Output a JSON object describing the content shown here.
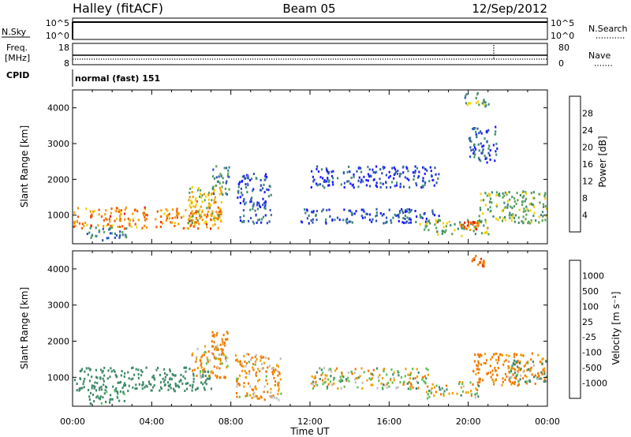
{
  "header": {
    "station": "Halley (fitACF)",
    "beam": "Beam 05",
    "date": "12/Sep/2012"
  },
  "nsky_panel": {
    "left_label": "N.Sky",
    "right_label": "N.Search",
    "ticks_left": [
      "10^5",
      "10^0"
    ],
    "ticks_right": [
      "10^5",
      "10^0"
    ]
  },
  "freq_panel": {
    "label_freq": "Freq.",
    "label_unit": "[MHz]",
    "right_label": "Nave",
    "ticks_left": [
      "18",
      "8"
    ],
    "ticks_right": [
      "80",
      "0"
    ]
  },
  "cpid_panel": {
    "label": "CPID",
    "text": "normal (fast) 151"
  },
  "x_axis": {
    "label": "Time UT",
    "ticks": [
      "00:00",
      "04:00",
      "08:00",
      "12:00",
      "16:00",
      "20:00",
      "00:00"
    ],
    "range_hours": [
      0,
      24
    ]
  },
  "chart_data": [
    {
      "type": "heatmap",
      "name": "power_panel",
      "ylabel": "Slant Range [km]",
      "yticks": [
        "1000",
        "2000",
        "3000",
        "4000"
      ],
      "ylim": [
        200,
        4500
      ],
      "colorbar": {
        "label": "Power [dB]",
        "ticks": [
          "4",
          "8",
          "12",
          "16",
          "20",
          "24",
          "28"
        ],
        "range": [
          0,
          30
        ],
        "colors": [
          "#1a1aff",
          "#2e55b8",
          "#3f8a7a",
          "#5aa15a",
          "#f0d000",
          "#f59a00",
          "#f05a00",
          "#e61e00"
        ]
      },
      "regions": [
        {
          "t": [
            0.0,
            7.5
          ],
          "r": [
            650,
            1250
          ],
          "value": 22
        },
        {
          "t": [
            5.8,
            7.6
          ],
          "r": [
            800,
            1900
          ],
          "value": 18
        },
        {
          "t": [
            7.0,
            7.9
          ],
          "r": [
            1600,
            2400
          ],
          "value": 10
        },
        {
          "t": [
            0.7,
            2.8
          ],
          "r": [
            300,
            700
          ],
          "value": 9
        },
        {
          "t": [
            8.3,
            10.0
          ],
          "r": [
            800,
            2200
          ],
          "value": 6
        },
        {
          "t": [
            12.0,
            18.5
          ],
          "r": [
            1800,
            2400
          ],
          "value": 5
        },
        {
          "t": [
            11.5,
            18.5
          ],
          "r": [
            800,
            1200
          ],
          "value": 5
        },
        {
          "t": [
            17.5,
            21.0
          ],
          "r": [
            450,
            900
          ],
          "value": 14
        },
        {
          "t": [
            19.5,
            20.5
          ],
          "r": [
            600,
            850
          ],
          "value": 26
        },
        {
          "t": [
            20.5,
            24.0
          ],
          "r": [
            800,
            1700
          ],
          "value": 13
        },
        {
          "t": [
            19.8,
            21.0
          ],
          "r": [
            4050,
            4450
          ],
          "value": 12
        },
        {
          "t": [
            20.0,
            21.5
          ],
          "r": [
            2500,
            3500
          ],
          "value": 5
        }
      ]
    },
    {
      "type": "heatmap",
      "name": "velocity_panel",
      "ylabel": "Slant Range [km]",
      "yticks": [
        "1000",
        "2000",
        "3000",
        "4000"
      ],
      "ylim": [
        200,
        4500
      ],
      "colorbar": {
        "label": "Velocity [m s⁻¹]",
        "ticks": [
          "1000",
          "500",
          "100",
          "25",
          "-25",
          "-100",
          "-500",
          "-1000"
        ],
        "colors": [
          "#2a4ab0",
          "#3f7aa0",
          "#3f8a6a",
          "#5fc050",
          "#c0c0c0",
          "#f0a000",
          "#f07a00",
          "#e83c00",
          "#e00000"
        ]
      },
      "regions": [
        {
          "t": [
            0.0,
            7.0
          ],
          "r": [
            650,
            1300
          ],
          "value": 300
        },
        {
          "t": [
            6.0,
            7.8
          ],
          "r": [
            1000,
            2000
          ],
          "value": -100
        },
        {
          "t": [
            7.0,
            7.8
          ],
          "r": [
            1500,
            2300
          ],
          "value": -300
        },
        {
          "t": [
            0.8,
            2.8
          ],
          "r": [
            300,
            700
          ],
          "value": 200
        },
        {
          "t": [
            8.2,
            10.5
          ],
          "r": [
            400,
            1700
          ],
          "value": -100
        },
        {
          "t": [
            12.0,
            18.0
          ],
          "r": [
            700,
            1300
          ],
          "value": 0
        },
        {
          "t": [
            17.8,
            20.5
          ],
          "r": [
            450,
            900
          ],
          "value": 0
        },
        {
          "t": [
            20.2,
            24.0
          ],
          "r": [
            800,
            1700
          ],
          "value": -200
        },
        {
          "t": [
            22.0,
            24.0
          ],
          "r": [
            900,
            1500
          ],
          "value": 100
        },
        {
          "t": [
            20.0,
            20.8
          ],
          "r": [
            4100,
            4400
          ],
          "value": -400
        }
      ]
    }
  ]
}
